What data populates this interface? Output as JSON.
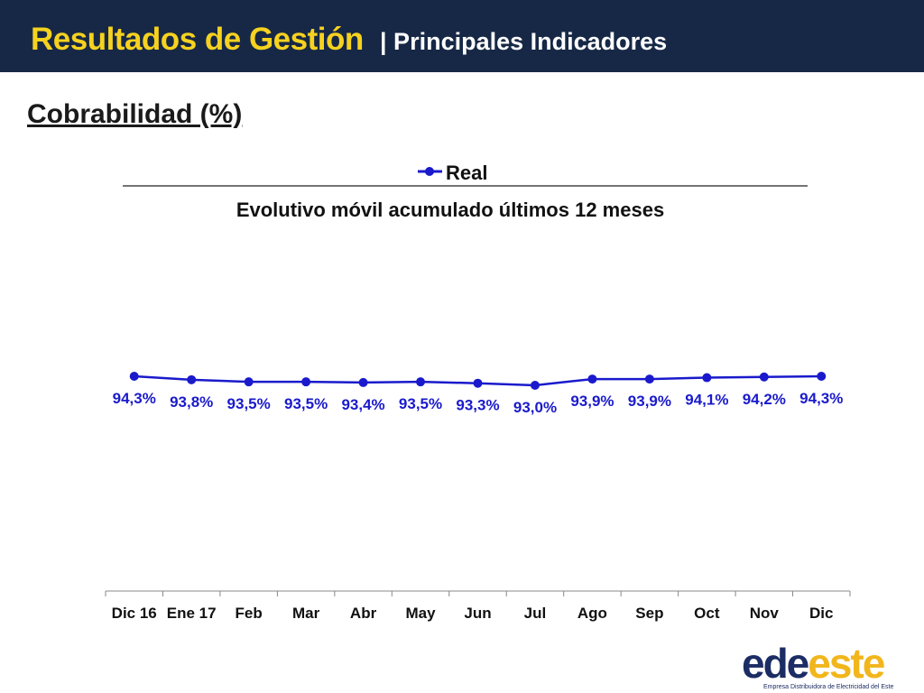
{
  "header": {
    "title": "Resultados de Gestión",
    "subtitle": "| Principales Indicadores"
  },
  "section": {
    "title": "Cobrabilidad (%)"
  },
  "colors": {
    "header_bg": "#172846",
    "accent": "#f6d21f",
    "series": "#1a1acc",
    "logo_blue": "#1c2c64",
    "logo_yellow": "#f2b61c"
  },
  "logo": {
    "part1": "ede",
    "part2": "este",
    "tagline": "Empresa Distribuidora de Electricidad del Este"
  },
  "chart_data": {
    "type": "line",
    "title": "Evolutivo móvil acumulado últimos 12 meses",
    "legend_position": "top",
    "categories": [
      "Dic 16",
      "Ene 17",
      "Feb",
      "Mar",
      "Abr",
      "May",
      "Jun",
      "Jul",
      "Ago",
      "Sep",
      "Oct",
      "Nov",
      "Dic"
    ],
    "series": [
      {
        "name": "Real",
        "values": [
          94.3,
          93.8,
          93.5,
          93.5,
          93.4,
          93.5,
          93.3,
          93.0,
          93.9,
          93.9,
          94.1,
          94.2,
          94.3
        ],
        "labels": [
          "94,3%",
          "93,8%",
          "93,5%",
          "93,5%",
          "93,4%",
          "93,5%",
          "93,3%",
          "93,0%",
          "93,9%",
          "93,9%",
          "94,1%",
          "94,2%",
          "94,3%"
        ]
      }
    ],
    "y_axis_visible": false,
    "grid": false
  }
}
